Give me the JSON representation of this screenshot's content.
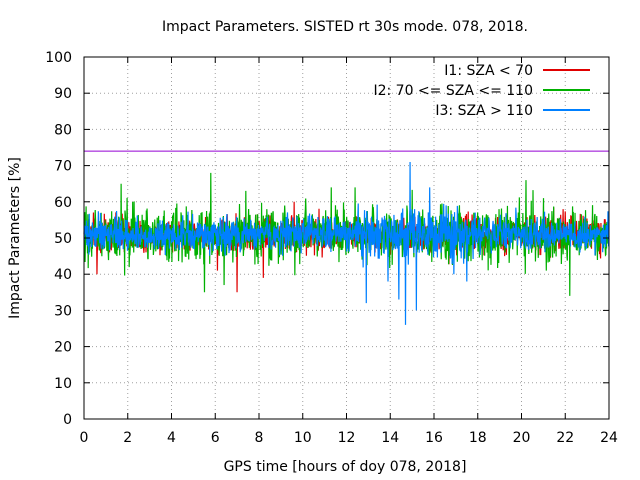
{
  "chart_data": {
    "type": "line",
    "title": "Impact Parameters. SISTED rt 30s mode. 078, 2018.",
    "xlabel": "GPS time [hours of doy 078, 2018]",
    "ylabel": "Impact Parameters [%]",
    "xlim": [
      0,
      24
    ],
    "ylim": [
      0,
      100
    ],
    "x_ticks": [
      0,
      2,
      4,
      6,
      8,
      10,
      12,
      14,
      16,
      18,
      20,
      22,
      24
    ],
    "y_ticks": [
      0,
      10,
      20,
      30,
      40,
      50,
      60,
      70,
      80,
      90,
      100
    ],
    "grid": true,
    "legend_position": "top-right",
    "threshold_line": {
      "y": 74,
      "color": "#9400d3"
    },
    "series": [
      {
        "name": "I1: SZA < 70",
        "color": "#e00000",
        "mean": 51,
        "typical_range": [
          43,
          58
        ],
        "extremes": {
          "min": 35,
          "max": 66
        },
        "notable_points": [
          [
            0.6,
            40
          ],
          [
            6.1,
            41
          ],
          [
            7.0,
            35
          ],
          [
            8.2,
            39
          ],
          [
            9.6,
            60
          ],
          [
            19.5,
            55
          ]
        ]
      },
      {
        "name": "I2: 70 <= SZA <= 110",
        "color": "#00b000",
        "mean": 51,
        "typical_range": [
          40,
          62
        ],
        "extremes": {
          "min": 34,
          "max": 68
        },
        "notable_points": [
          [
            1.7,
            65
          ],
          [
            5.5,
            35
          ],
          [
            5.8,
            68
          ],
          [
            6.4,
            37
          ],
          [
            7.4,
            63
          ],
          [
            11.3,
            64
          ],
          [
            12.4,
            64
          ],
          [
            20.2,
            66
          ],
          [
            21.0,
            61
          ],
          [
            22.2,
            34
          ],
          [
            22.7,
            55
          ]
        ]
      },
      {
        "name": "I3: SZA > 110",
        "color": "#0080ff",
        "mean": 51,
        "typical_range": [
          44,
          58
        ],
        "extremes": {
          "min": 26,
          "max": 71
        },
        "notable_points": [
          [
            12.9,
            32
          ],
          [
            13.9,
            38
          ],
          [
            14.4,
            33
          ],
          [
            14.7,
            26
          ],
          [
            14.9,
            71
          ],
          [
            15.2,
            30
          ],
          [
            15.8,
            64
          ],
          [
            16.9,
            40
          ],
          [
            17.5,
            38
          ]
        ]
      }
    ]
  }
}
